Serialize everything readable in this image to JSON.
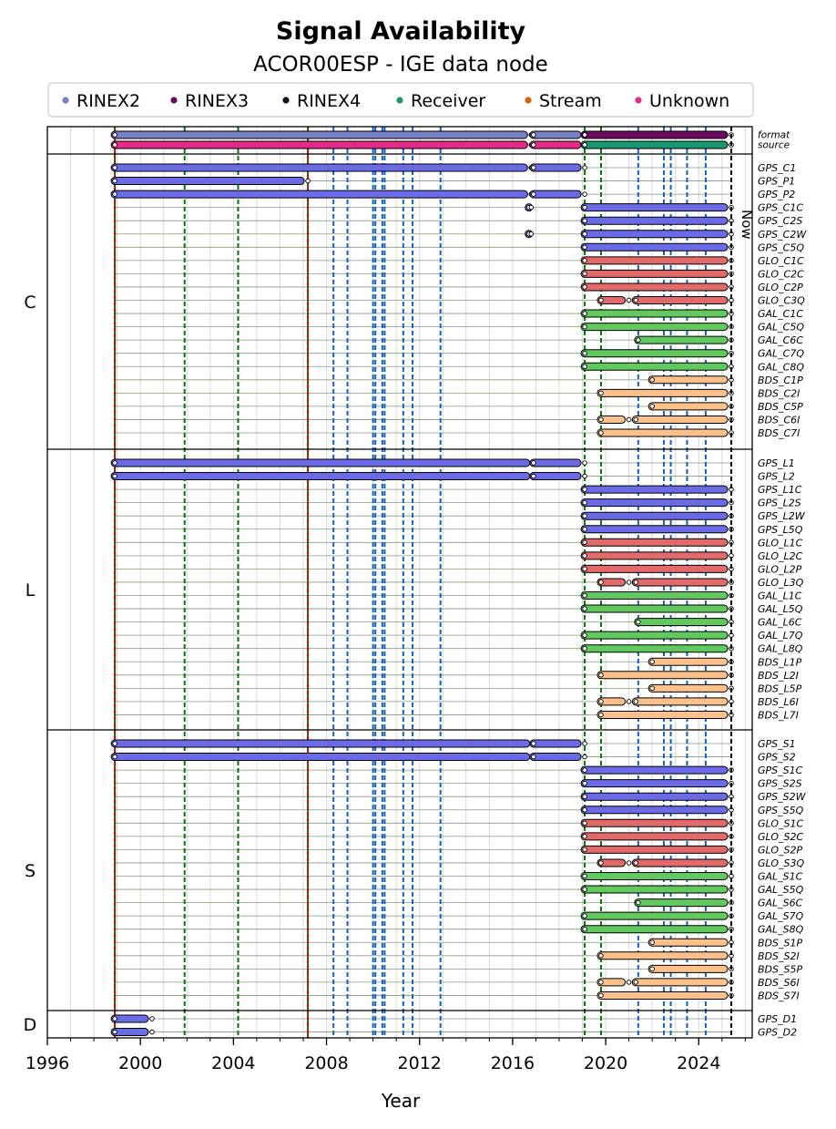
{
  "chart_data": {
    "type": "timeline",
    "title": "Signal Availability",
    "subtitle": "ACOR00ESP - IGE data node",
    "xlabel": "Year",
    "xlim": [
      1996.0,
      2026.3
    ],
    "xticks": [
      1996,
      2000,
      2004,
      2008,
      2012,
      2016,
      2020,
      2024
    ],
    "now_year": 2025.4,
    "now_label": "Now",
    "colors": {
      "RINEX2": "#7b7fc4",
      "RINEX3": "#6a0a5f",
      "RINEX4": "#180a20",
      "Receiver": "#1a9670",
      "Stream": "#d95f02",
      "Unknown": "#e7298a",
      "GPS": "#6b6be8",
      "GLO": "#e36a6a",
      "GAL": "#62c95f",
      "BDS": "#fcc08a",
      "event_red": "#cc0000",
      "event_green": "#007700",
      "event_blue": "#1060c0"
    },
    "legend": [
      "RINEX2",
      "RINEX3",
      "RINEX4",
      "Receiver",
      "Stream",
      "Unknown"
    ],
    "meta_rows": [
      {
        "label": "format",
        "bars": [
          [
            1998.9,
            2016.8,
            "RINEX2"
          ],
          [
            2016.9,
            2019.1,
            "RINEX2"
          ],
          [
            2019.1,
            2025.4,
            "RINEX3"
          ]
        ]
      },
      {
        "label": "source",
        "bars": [
          [
            1998.9,
            2016.8,
            "Unknown"
          ],
          [
            2016.9,
            2019.1,
            "Unknown"
          ],
          [
            2019.1,
            2025.4,
            "Receiver"
          ]
        ]
      }
    ],
    "groups": [
      {
        "name": "C",
        "rows": [
          {
            "label": "GPS_C1",
            "bars": [
              [
                1998.9,
                2016.8
              ],
              [
                2016.9,
                2019.1
              ]
            ]
          },
          {
            "label": "GPS_P1",
            "bars": [
              [
                1998.9,
                2007.2
              ]
            ]
          },
          {
            "label": "GPS_P2",
            "bars": [
              [
                1998.9,
                2016.8
              ],
              [
                2016.9,
                2019.1
              ]
            ]
          },
          {
            "label": "GPS_C1C",
            "bars": [
              [
                2016.7,
                2016.8
              ],
              [
                2019.1,
                2025.4
              ]
            ]
          },
          {
            "label": "GPS_C2S",
            "bars": [
              [
                2019.1,
                2025.4
              ]
            ]
          },
          {
            "label": "GPS_C2W",
            "bars": [
              [
                2016.7,
                2016.8
              ],
              [
                2019.1,
                2025.4
              ]
            ]
          },
          {
            "label": "GPS_C5Q",
            "bars": [
              [
                2019.1,
                2025.4
              ]
            ]
          },
          {
            "label": "GLO_C1C",
            "bars": [
              [
                2019.1,
                2025.4
              ]
            ]
          },
          {
            "label": "GLO_C2C",
            "bars": [
              [
                2019.1,
                2025.4
              ]
            ]
          },
          {
            "label": "GLO_C2P",
            "bars": [
              [
                2019.1,
                2025.4
              ]
            ]
          },
          {
            "label": "GLO_C3Q",
            "bars": [
              [
                2019.8,
                2021.0
              ],
              [
                2021.3,
                2025.4
              ]
            ]
          },
          {
            "label": "GAL_C1C",
            "bars": [
              [
                2019.1,
                2025.4
              ]
            ]
          },
          {
            "label": "GAL_C5Q",
            "bars": [
              [
                2019.1,
                2025.4
              ]
            ]
          },
          {
            "label": "GAL_C6C",
            "bars": [
              [
                2021.4,
                2025.4
              ]
            ]
          },
          {
            "label": "GAL_C7Q",
            "bars": [
              [
                2019.1,
                2025.4
              ]
            ]
          },
          {
            "label": "GAL_C8Q",
            "bars": [
              [
                2019.1,
                2025.4
              ]
            ]
          },
          {
            "label": "BDS_C1P",
            "bars": [
              [
                2022.0,
                2025.4
              ]
            ]
          },
          {
            "label": "BDS_C2I",
            "bars": [
              [
                2019.8,
                2025.4
              ]
            ]
          },
          {
            "label": "BDS_C5P",
            "bars": [
              [
                2022.0,
                2025.4
              ]
            ]
          },
          {
            "label": "BDS_C6I",
            "bars": [
              [
                2019.8,
                2021.0
              ],
              [
                2021.3,
                2025.4
              ]
            ]
          },
          {
            "label": "BDS_C7I",
            "bars": [
              [
                2019.8,
                2025.4
              ]
            ]
          }
        ]
      },
      {
        "name": "L",
        "rows": [
          {
            "label": "GPS_L1",
            "bars": [
              [
                1998.9,
                2016.9
              ],
              [
                2016.9,
                2019.1
              ]
            ]
          },
          {
            "label": "GPS_L2",
            "bars": [
              [
                1998.9,
                2016.9
              ],
              [
                2016.9,
                2019.1
              ]
            ]
          },
          {
            "label": "GPS_L1C",
            "bars": [
              [
                2019.1,
                2025.4
              ]
            ]
          },
          {
            "label": "GPS_L2S",
            "bars": [
              [
                2019.1,
                2025.4
              ]
            ]
          },
          {
            "label": "GPS_L2W",
            "bars": [
              [
                2019.1,
                2025.4
              ]
            ]
          },
          {
            "label": "GPS_L5Q",
            "bars": [
              [
                2019.1,
                2025.4
              ]
            ]
          },
          {
            "label": "GLO_L1C",
            "bars": [
              [
                2019.1,
                2025.4
              ]
            ]
          },
          {
            "label": "GLO_L2C",
            "bars": [
              [
                2019.1,
                2025.4
              ]
            ]
          },
          {
            "label": "GLO_L2P",
            "bars": [
              [
                2019.1,
                2025.4
              ]
            ]
          },
          {
            "label": "GLO_L3Q",
            "bars": [
              [
                2019.8,
                2021.0
              ],
              [
                2021.3,
                2025.4
              ]
            ]
          },
          {
            "label": "GAL_L1C",
            "bars": [
              [
                2019.1,
                2025.4
              ]
            ]
          },
          {
            "label": "GAL_L5Q",
            "bars": [
              [
                2019.1,
                2025.4
              ]
            ]
          },
          {
            "label": "GAL_L6C",
            "bars": [
              [
                2021.4,
                2025.4
              ]
            ]
          },
          {
            "label": "GAL_L7Q",
            "bars": [
              [
                2019.1,
                2025.4
              ]
            ]
          },
          {
            "label": "GAL_L8Q",
            "bars": [
              [
                2019.1,
                2025.4
              ]
            ]
          },
          {
            "label": "BDS_L1P",
            "bars": [
              [
                2022.0,
                2025.4
              ]
            ]
          },
          {
            "label": "BDS_L2I",
            "bars": [
              [
                2019.8,
                2025.4
              ]
            ]
          },
          {
            "label": "BDS_L5P",
            "bars": [
              [
                2022.0,
                2025.4
              ]
            ]
          },
          {
            "label": "BDS_L6I",
            "bars": [
              [
                2019.8,
                2021.0
              ],
              [
                2021.3,
                2025.4
              ]
            ]
          },
          {
            "label": "BDS_L7I",
            "bars": [
              [
                2019.8,
                2025.4
              ]
            ]
          }
        ]
      },
      {
        "name": "S",
        "rows": [
          {
            "label": "GPS_S1",
            "bars": [
              [
                1998.9,
                2016.9
              ],
              [
                2016.9,
                2019.1
              ]
            ]
          },
          {
            "label": "GPS_S2",
            "bars": [
              [
                1998.9,
                2016.9
              ],
              [
                2016.9,
                2019.1
              ]
            ]
          },
          {
            "label": "GPS_S1C",
            "bars": [
              [
                2019.1,
                2025.4
              ]
            ]
          },
          {
            "label": "GPS_S2S",
            "bars": [
              [
                2019.1,
                2025.4
              ]
            ]
          },
          {
            "label": "GPS_S2W",
            "bars": [
              [
                2019.1,
                2025.4
              ]
            ]
          },
          {
            "label": "GPS_S5Q",
            "bars": [
              [
                2019.1,
                2025.4
              ]
            ]
          },
          {
            "label": "GLO_S1C",
            "bars": [
              [
                2019.1,
                2025.4
              ]
            ]
          },
          {
            "label": "GLO_S2C",
            "bars": [
              [
                2019.1,
                2025.4
              ]
            ]
          },
          {
            "label": "GLO_S2P",
            "bars": [
              [
                2019.1,
                2025.4
              ]
            ]
          },
          {
            "label": "GLO_S3Q",
            "bars": [
              [
                2019.8,
                2021.0
              ],
              [
                2021.3,
                2025.4
              ]
            ]
          },
          {
            "label": "GAL_S1C",
            "bars": [
              [
                2019.1,
                2025.4
              ]
            ]
          },
          {
            "label": "GAL_S5Q",
            "bars": [
              [
                2019.1,
                2025.4
              ]
            ]
          },
          {
            "label": "GAL_S6C",
            "bars": [
              [
                2021.4,
                2025.4
              ]
            ]
          },
          {
            "label": "GAL_S7Q",
            "bars": [
              [
                2019.1,
                2025.4
              ]
            ]
          },
          {
            "label": "GAL_S8Q",
            "bars": [
              [
                2019.1,
                2025.4
              ]
            ]
          },
          {
            "label": "BDS_S1P",
            "bars": [
              [
                2022.0,
                2025.4
              ]
            ]
          },
          {
            "label": "BDS_S2I",
            "bars": [
              [
                2019.8,
                2025.4
              ]
            ]
          },
          {
            "label": "BDS_S5P",
            "bars": [
              [
                2022.0,
                2025.4
              ]
            ]
          },
          {
            "label": "BDS_S6I",
            "bars": [
              [
                2019.8,
                2021.0
              ],
              [
                2021.3,
                2025.4
              ]
            ]
          },
          {
            "label": "BDS_S7I",
            "bars": [
              [
                2019.8,
                2025.4
              ]
            ]
          }
        ]
      },
      {
        "name": "D",
        "rows": [
          {
            "label": "GPS_D1",
            "bars": [
              [
                1998.9,
                2000.5
              ]
            ]
          },
          {
            "label": "GPS_D2",
            "bars": [
              [
                1998.9,
                2000.5
              ]
            ]
          }
        ]
      }
    ],
    "events": [
      {
        "year": 1998.9,
        "kind": "red"
      },
      {
        "year": 2007.2,
        "kind": "red"
      },
      {
        "year": 2001.9,
        "kind": "green"
      },
      {
        "year": 2004.2,
        "kind": "green"
      },
      {
        "year": 2019.1,
        "kind": "green"
      },
      {
        "year": 2019.8,
        "kind": "green"
      },
      {
        "year": 2008.3,
        "kind": "blue"
      },
      {
        "year": 2008.9,
        "kind": "blue"
      },
      {
        "year": 2010.0,
        "kind": "blue"
      },
      {
        "year": 2010.1,
        "kind": "blue"
      },
      {
        "year": 2010.4,
        "kind": "blue"
      },
      {
        "year": 2010.5,
        "kind": "blue"
      },
      {
        "year": 2011.3,
        "kind": "blue"
      },
      {
        "year": 2011.7,
        "kind": "blue"
      },
      {
        "year": 2012.9,
        "kind": "blue"
      },
      {
        "year": 2021.4,
        "kind": "blue"
      },
      {
        "year": 2022.5,
        "kind": "blue"
      },
      {
        "year": 2022.8,
        "kind": "blue"
      },
      {
        "year": 2023.5,
        "kind": "blue"
      },
      {
        "year": 2024.3,
        "kind": "blue"
      }
    ]
  }
}
